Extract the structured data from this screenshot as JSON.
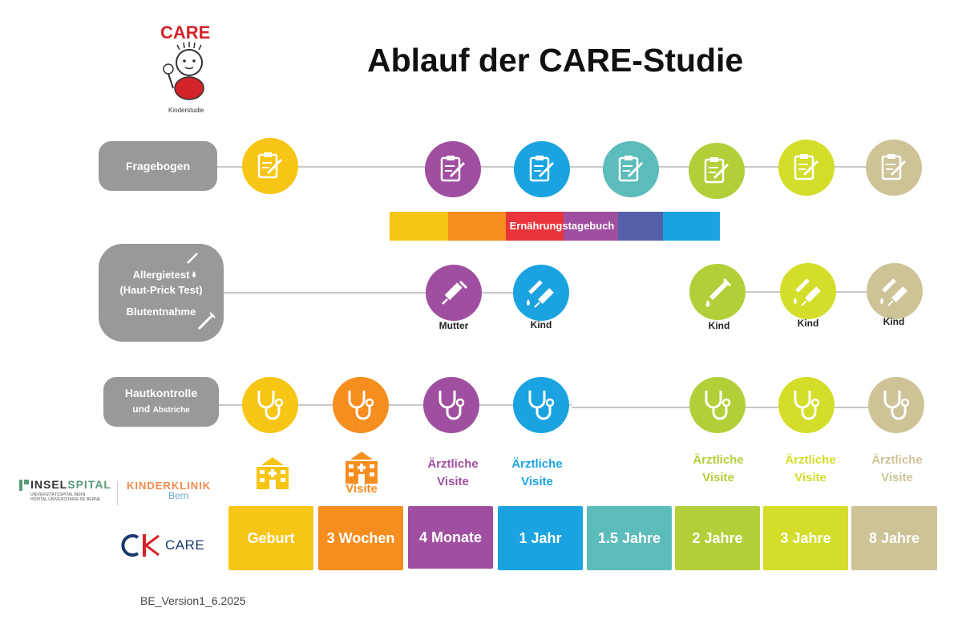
{
  "title": "Ablauf der CARE-Studie",
  "logo": {
    "care_text": "CARE",
    "subtext": "Kinderstudie"
  },
  "rows": {
    "fragebogen": "Fragebogen",
    "allergie_line1": "Allergietest",
    "allergie_line2": "(Haut-Prick Test)",
    "allergie_line3": "Blutentnahme",
    "haut_line1": "Hautkontrolle",
    "haut_line2": "und",
    "haut_line3": "Abstriche"
  },
  "diary": {
    "label": "Ernährungstagebuch",
    "colors": [
      "#f7c515",
      "#f58e1f",
      "#e8343a",
      "#a04fa0",
      "#5460a8",
      "#1aa3e0"
    ]
  },
  "blood_labels": [
    "Mutter",
    "Kind",
    "Kind",
    "Kind",
    "Kind"
  ],
  "visit_labels": {
    "visite": "Visite",
    "aerztliche1": "Ärztliche",
    "visite1": "Visite",
    "aerztliche2": "Ärztliche",
    "visite2": "Visite",
    "aerztliche3": "Ärztliche",
    "visite3": "Visite",
    "aerztliche4": "Ärztliche",
    "visite4": "Visite",
    "aerztliche5": "Ärztliche",
    "visite5": "Visite"
  },
  "timeline": [
    {
      "label": "Geburt",
      "color": "#f7c515"
    },
    {
      "label": "3 Wochen",
      "color": "#f58e1f"
    },
    {
      "label": "4 Monate",
      "color": "#a04fa0"
    },
    {
      "label": "1 Jahr",
      "color": "#1aa3e0"
    },
    {
      "label": "1.5 Jahre",
      "color": "#5bbcba"
    },
    {
      "label": "2 Jahre",
      "color": "#b2cf3a"
    },
    {
      "label": "3 Jahre",
      "color": "#d3dd2a"
    },
    {
      "label": "8 Jahre",
      "color": "#cdc397"
    }
  ],
  "insel": {
    "name_a": "INSEL",
    "name_b": "SPITAL",
    "sub1": "UNIVERSITÄTSSPITAL BERN",
    "sub2": "HÔPITAL UNIVERSITAIRE DE BERNE",
    "kk1": "KINDERKLINIK",
    "kk2": "Bern"
  },
  "ck": {
    "text": "CARE"
  },
  "version": "BE_Version1_6.2025"
}
